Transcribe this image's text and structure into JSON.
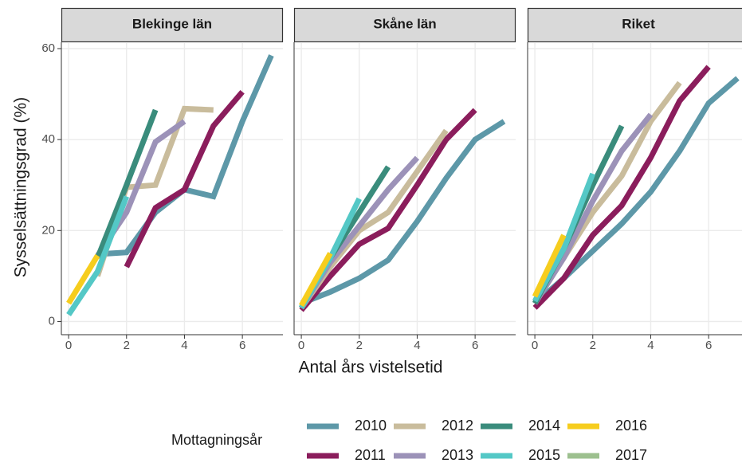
{
  "chart_data": {
    "type": "line",
    "xlabel": "Antal års vistelsetid",
    "ylabel": "Sysselsättningsgrad (%)",
    "legend_title": "Mottagningsår",
    "xlim": [
      -0.25,
      7.4
    ],
    "xticks": [
      0,
      2,
      4,
      6
    ],
    "ylim": [
      -2.9,
      61.4
    ],
    "yticks": [
      0,
      20,
      40,
      60
    ],
    "grid": true,
    "series": [
      {
        "name": "2010",
        "color": "#5d98a8"
      },
      {
        "name": "2011",
        "color": "#8b1d5c"
      },
      {
        "name": "2012",
        "color": "#c9bc9c"
      },
      {
        "name": "2013",
        "color": "#9c92b8"
      },
      {
        "name": "2014",
        "color": "#3a8c7c"
      },
      {
        "name": "2015",
        "color": "#54c8c6"
      },
      {
        "name": "2016",
        "color": "#f6cd1e"
      },
      {
        "name": "2017",
        "color": "#9dc08f"
      }
    ],
    "panels": [
      {
        "title": "Blekinge län",
        "series": [
          {
            "x": [
              1,
              2,
              3,
              4,
              5,
              6,
              7
            ],
            "values": [
              14.8,
              15.2,
              24,
              29,
              27.5,
              44,
              58.5
            ]
          },
          {
            "x": [
              2,
              3,
              4,
              5,
              6
            ],
            "values": [
              12,
              25,
              29,
              43,
              50.5
            ]
          },
          {
            "x": [
              1,
              2,
              3,
              4,
              5
            ],
            "values": [
              10,
              29.5,
              30,
              46.8,
              46.5
            ]
          },
          {
            "x": [
              1,
              2,
              3,
              4
            ],
            "values": [
              14.5,
              24,
              39.5,
              44
            ]
          },
          {
            "x": [
              1,
              2,
              3
            ],
            "values": [
              14,
              30,
              46.5
            ]
          },
          {
            "x": [
              0,
              1,
              2
            ],
            "values": [
              1.5,
              11,
              27.5
            ]
          },
          {
            "x": [
              0,
              1
            ],
            "values": [
              4,
              14.5
            ]
          },
          {
            "x": [],
            "values": []
          }
        ]
      },
      {
        "title": "Skåne län",
        "series": [
          {
            "x": [
              0,
              1,
              2,
              3,
              4,
              5,
              6,
              7
            ],
            "values": [
              4,
              6.5,
              9.5,
              13.5,
              22,
              31.5,
              40,
              44
            ]
          },
          {
            "x": [
              0,
              1,
              2,
              3,
              4,
              5,
              6
            ],
            "values": [
              2.5,
              10,
              17,
              20.5,
              30,
              40,
              46.5
            ]
          },
          {
            "x": [
              0,
              1,
              2,
              3,
              4,
              5
            ],
            "values": [
              3,
              12,
              20,
              24,
              33,
              42
            ]
          },
          {
            "x": [
              0,
              1,
              2,
              3,
              4
            ],
            "values": [
              3,
              13,
              21,
              29,
              36
            ]
          },
          {
            "x": [
              0,
              1,
              2,
              3
            ],
            "values": [
              3,
              14,
              24,
              34
            ]
          },
          {
            "x": [
              0,
              1,
              2
            ],
            "values": [
              3,
              14,
              27
            ]
          },
          {
            "x": [
              0,
              1
            ],
            "values": [
              3.5,
              15
            ]
          },
          {
            "x": [],
            "values": []
          }
        ]
      },
      {
        "title": "Riket",
        "series": [
          {
            "x": [
              0,
              1,
              2,
              3,
              4,
              5,
              6,
              7
            ],
            "values": [
              4,
              9.5,
              15.5,
              21.5,
              28.5,
              37.5,
              48,
              53.5
            ]
          },
          {
            "x": [
              0,
              1,
              2,
              3,
              4,
              5,
              6
            ],
            "values": [
              3,
              9.5,
              19,
              25.5,
              36,
              48.5,
              56
            ]
          },
          {
            "x": [
              0,
              1,
              2,
              3,
              4,
              5
            ],
            "values": [
              4,
              14,
              24,
              32,
              44,
              52.5
            ]
          },
          {
            "x": [
              0,
              1,
              2,
              3,
              4
            ],
            "values": [
              4,
              14,
              26.5,
              37.5,
              45.5
            ]
          },
          {
            "x": [
              0,
              1,
              2,
              3
            ],
            "values": [
              4,
              16,
              30,
              43
            ]
          },
          {
            "x": [
              0,
              1,
              2
            ],
            "values": [
              4.5,
              16,
              32.5
            ]
          },
          {
            "x": [
              0,
              1
            ],
            "values": [
              5.5,
              19
            ]
          },
          {
            "x": [],
            "values": []
          }
        ]
      }
    ]
  }
}
